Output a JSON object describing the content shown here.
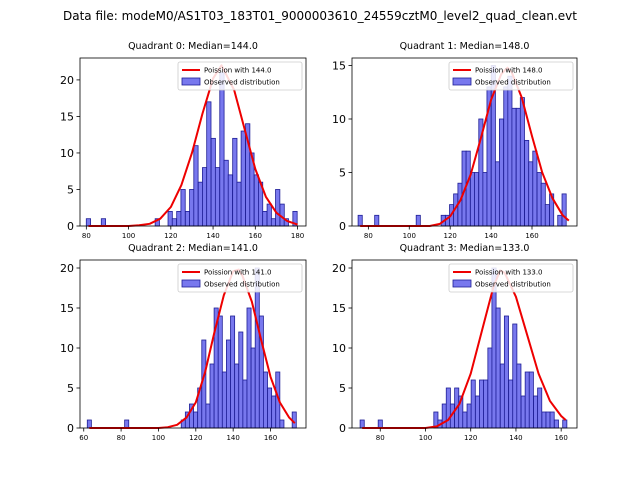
{
  "suptitle": "Data file: modeM0/AS1T03_183T01_9000003610_24559cztM0_level2_quad_clean.evt",
  "colors": {
    "bar_fill": "#7878ee",
    "bar_edge": "#1e1e96",
    "poisson": "#ee0000",
    "background": "#ffffff"
  },
  "chart_data": [
    {
      "type": "bar",
      "title": "Quadrant 0: Median=144.0",
      "median": 144.0,
      "legend": {
        "location": "top-right",
        "entries": [
          "Poission with 144.0",
          "Observed distribution"
        ]
      },
      "xlim": [
        77,
        184
      ],
      "ylim": [
        0,
        23
      ],
      "xticks": [
        80,
        100,
        120,
        140,
        160,
        180
      ],
      "yticks": [
        0,
        5,
        10,
        15,
        20
      ],
      "bin_width": 2.04,
      "bins": [
        {
          "x": 81.0,
          "y": 1
        },
        {
          "x": 88.1,
          "y": 1
        },
        {
          "x": 113.6,
          "y": 1
        },
        {
          "x": 119.7,
          "y": 2
        },
        {
          "x": 121.7,
          "y": 1
        },
        {
          "x": 123.8,
          "y": 2
        },
        {
          "x": 125.8,
          "y": 5
        },
        {
          "x": 127.9,
          "y": 2
        },
        {
          "x": 129.9,
          "y": 5
        },
        {
          "x": 131.9,
          "y": 11
        },
        {
          "x": 134.0,
          "y": 6
        },
        {
          "x": 136.0,
          "y": 8
        },
        {
          "x": 138.0,
          "y": 17
        },
        {
          "x": 140.1,
          "y": 12
        },
        {
          "x": 142.1,
          "y": 8
        },
        {
          "x": 144.2,
          "y": 21
        },
        {
          "x": 146.2,
          "y": 9
        },
        {
          "x": 148.2,
          "y": 7
        },
        {
          "x": 150.3,
          "y": 12
        },
        {
          "x": 152.3,
          "y": 6
        },
        {
          "x": 154.3,
          "y": 13
        },
        {
          "x": 156.4,
          "y": 14
        },
        {
          "x": 158.4,
          "y": 10
        },
        {
          "x": 160.5,
          "y": 7
        },
        {
          "x": 162.5,
          "y": 6
        },
        {
          "x": 164.5,
          "y": 2
        },
        {
          "x": 166.6,
          "y": 3
        },
        {
          "x": 168.6,
          "y": 1
        },
        {
          "x": 170.6,
          "y": 5
        },
        {
          "x": 172.7,
          "y": 3
        },
        {
          "x": 174.7,
          "y": 1
        },
        {
          "x": 178.8,
          "y": 2
        }
      ],
      "poisson_curve": [
        [
          81,
          0
        ],
        [
          90,
          0
        ],
        [
          100,
          0
        ],
        [
          105,
          0.1
        ],
        [
          110,
          0.3
        ],
        [
          115,
          1.0
        ],
        [
          120,
          2.6
        ],
        [
          125,
          5.6
        ],
        [
          130,
          10.0
        ],
        [
          135,
          15.4
        ],
        [
          140,
          20.2
        ],
        [
          144,
          22.0
        ],
        [
          150,
          18.6
        ],
        [
          155,
          13.2
        ],
        [
          160,
          7.8
        ],
        [
          165,
          4.0
        ],
        [
          170,
          1.8
        ],
        [
          175,
          0.7
        ],
        [
          180,
          0.2
        ]
      ]
    },
    {
      "type": "bar",
      "title": "Quadrant 1: Median=148.0",
      "median": 148.0,
      "legend": {
        "location": "top-right",
        "entries": [
          "Poission with 148.0",
          "Observed distribution"
        ]
      },
      "xlim": [
        72,
        182
      ],
      "ylim": [
        0,
        15.7
      ],
      "xticks": [
        80,
        100,
        120,
        140,
        160
      ],
      "yticks": [
        0,
        5,
        10,
        15
      ],
      "bin_width": 2.04,
      "bins": [
        {
          "x": 76.0,
          "y": 1
        },
        {
          "x": 84.1,
          "y": 1
        },
        {
          "x": 104.4,
          "y": 1
        },
        {
          "x": 116.6,
          "y": 1
        },
        {
          "x": 118.7,
          "y": 1
        },
        {
          "x": 120.7,
          "y": 2
        },
        {
          "x": 122.7,
          "y": 3
        },
        {
          "x": 124.8,
          "y": 4
        },
        {
          "x": 126.8,
          "y": 7
        },
        {
          "x": 128.8,
          "y": 7
        },
        {
          "x": 130.9,
          "y": 5
        },
        {
          "x": 132.9,
          "y": 5
        },
        {
          "x": 135.0,
          "y": 10
        },
        {
          "x": 137.0,
          "y": 5
        },
        {
          "x": 139.0,
          "y": 13
        },
        {
          "x": 141.1,
          "y": 15
        },
        {
          "x": 143.1,
          "y": 6
        },
        {
          "x": 145.1,
          "y": 10
        },
        {
          "x": 147.2,
          "y": 13
        },
        {
          "x": 149.2,
          "y": 14
        },
        {
          "x": 151.2,
          "y": 11
        },
        {
          "x": 153.3,
          "y": 11
        },
        {
          "x": 155.3,
          "y": 12
        },
        {
          "x": 157.4,
          "y": 8
        },
        {
          "x": 159.4,
          "y": 6
        },
        {
          "x": 161.4,
          "y": 7
        },
        {
          "x": 163.5,
          "y": 5
        },
        {
          "x": 165.5,
          "y": 4
        },
        {
          "x": 167.5,
          "y": 2
        },
        {
          "x": 169.6,
          "y": 3
        },
        {
          "x": 173.6,
          "y": 1
        },
        {
          "x": 175.7,
          "y": 3
        }
      ],
      "poisson_curve": [
        [
          76,
          0
        ],
        [
          90,
          0
        ],
        [
          100,
          0
        ],
        [
          110,
          0
        ],
        [
          115,
          0.2
        ],
        [
          120,
          0.9
        ],
        [
          125,
          2.4
        ],
        [
          130,
          4.8
        ],
        [
          135,
          8.2
        ],
        [
          140,
          11.8
        ],
        [
          145,
          14.2
        ],
        [
          148,
          14.8
        ],
        [
          150,
          14.4
        ],
        [
          155,
          12.0
        ],
        [
          160,
          8.4
        ],
        [
          165,
          5.0
        ],
        [
          170,
          2.6
        ],
        [
          175,
          1.0
        ],
        [
          178,
          0.5
        ]
      ]
    },
    {
      "type": "bar",
      "title": "Quadrant 2: Median=141.0",
      "median": 141.0,
      "legend": {
        "location": "top-right",
        "entries": [
          "Poission with 141.0",
          "Observed distribution"
        ]
      },
      "xlim": [
        58,
        179
      ],
      "ylim": [
        0,
        21
      ],
      "xticks": [
        60,
        80,
        100,
        120,
        140,
        160
      ],
      "yticks": [
        0,
        5,
        10,
        15,
        20
      ],
      "bin_width": 2.2,
      "bins": [
        {
          "x": 63.0,
          "y": 1
        },
        {
          "x": 83.0,
          "y": 1
        },
        {
          "x": 113.3,
          "y": 1
        },
        {
          "x": 115.5,
          "y": 2
        },
        {
          "x": 117.7,
          "y": 3
        },
        {
          "x": 119.9,
          "y": 2
        },
        {
          "x": 122.1,
          "y": 5
        },
        {
          "x": 124.3,
          "y": 11
        },
        {
          "x": 126.5,
          "y": 3
        },
        {
          "x": 128.7,
          "y": 8
        },
        {
          "x": 130.9,
          "y": 15
        },
        {
          "x": 133.1,
          "y": 14
        },
        {
          "x": 135.3,
          "y": 7
        },
        {
          "x": 137.5,
          "y": 11
        },
        {
          "x": 139.7,
          "y": 14
        },
        {
          "x": 141.9,
          "y": 8
        },
        {
          "x": 144.1,
          "y": 12
        },
        {
          "x": 146.3,
          "y": 6
        },
        {
          "x": 148.5,
          "y": 15
        },
        {
          "x": 150.7,
          "y": 10
        },
        {
          "x": 152.9,
          "y": 20
        },
        {
          "x": 155.1,
          "y": 14
        },
        {
          "x": 157.3,
          "y": 7
        },
        {
          "x": 159.5,
          "y": 5
        },
        {
          "x": 161.7,
          "y": 4
        },
        {
          "x": 163.9,
          "y": 7
        },
        {
          "x": 166.1,
          "y": 1
        },
        {
          "x": 172.7,
          "y": 2
        }
      ],
      "poisson_curve": [
        [
          63,
          0
        ],
        [
          80,
          0
        ],
        [
          100,
          0
        ],
        [
          105,
          0.1
        ],
        [
          110,
          0.4
        ],
        [
          115,
          1.3
        ],
        [
          120,
          3.2
        ],
        [
          125,
          7.0
        ],
        [
          130,
          12.0
        ],
        [
          135,
          16.6
        ],
        [
          140,
          19.6
        ],
        [
          143,
          19.8
        ],
        [
          145,
          19.0
        ],
        [
          150,
          15.8
        ],
        [
          155,
          11.0
        ],
        [
          160,
          6.4
        ],
        [
          165,
          3.2
        ],
        [
          170,
          1.3
        ],
        [
          173,
          0.6
        ]
      ]
    },
    {
      "type": "bar",
      "title": "Quadrant 3: Median=133.0",
      "median": 133.0,
      "legend": {
        "location": "top-right",
        "entries": [
          "Poission with 133.0",
          "Observed distribution"
        ]
      },
      "xlim": [
        67.5,
        167
      ],
      "ylim": [
        0,
        21
      ],
      "xticks": [
        80,
        100,
        120,
        140,
        160
      ],
      "yticks": [
        0,
        5,
        10,
        15,
        20
      ],
      "bin_width": 1.84,
      "bins": [
        {
          "x": 72.0,
          "y": 1
        },
        {
          "x": 80.0,
          "y": 1
        },
        {
          "x": 104.6,
          "y": 2
        },
        {
          "x": 106.4,
          "y": 1
        },
        {
          "x": 108.3,
          "y": 3
        },
        {
          "x": 110.1,
          "y": 5
        },
        {
          "x": 111.9,
          "y": 3
        },
        {
          "x": 113.8,
          "y": 5
        },
        {
          "x": 115.6,
          "y": 4
        },
        {
          "x": 117.4,
          "y": 2
        },
        {
          "x": 119.3,
          "y": 3
        },
        {
          "x": 121.1,
          "y": 6
        },
        {
          "x": 123.0,
          "y": 4
        },
        {
          "x": 124.8,
          "y": 6
        },
        {
          "x": 126.6,
          "y": 6
        },
        {
          "x": 128.5,
          "y": 10
        },
        {
          "x": 130.3,
          "y": 20
        },
        {
          "x": 132.1,
          "y": 15
        },
        {
          "x": 134.0,
          "y": 8
        },
        {
          "x": 135.8,
          "y": 14
        },
        {
          "x": 137.7,
          "y": 6
        },
        {
          "x": 139.5,
          "y": 13
        },
        {
          "x": 141.3,
          "y": 8
        },
        {
          "x": 143.2,
          "y": 4
        },
        {
          "x": 145.0,
          "y": 7
        },
        {
          "x": 146.8,
          "y": 7
        },
        {
          "x": 148.7,
          "y": 4
        },
        {
          "x": 150.5,
          "y": 5
        },
        {
          "x": 152.4,
          "y": 2
        },
        {
          "x": 154.2,
          "y": 2
        },
        {
          "x": 156.0,
          "y": 2
        },
        {
          "x": 157.9,
          "y": 1
        },
        {
          "x": 161.6,
          "y": 1
        }
      ],
      "poisson_curve": [
        [
          72,
          0
        ],
        [
          90,
          0
        ],
        [
          100,
          0
        ],
        [
          105,
          0.2
        ],
        [
          110,
          1.0
        ],
        [
          115,
          3.0
        ],
        [
          120,
          6.8
        ],
        [
          125,
          12.2
        ],
        [
          130,
          17.6
        ],
        [
          133,
          19.7
        ],
        [
          135,
          19.4
        ],
        [
          140,
          16.4
        ],
        [
          145,
          11.6
        ],
        [
          150,
          6.8
        ],
        [
          155,
          3.4
        ],
        [
          160,
          1.5
        ],
        [
          162,
          1.0
        ]
      ]
    }
  ]
}
